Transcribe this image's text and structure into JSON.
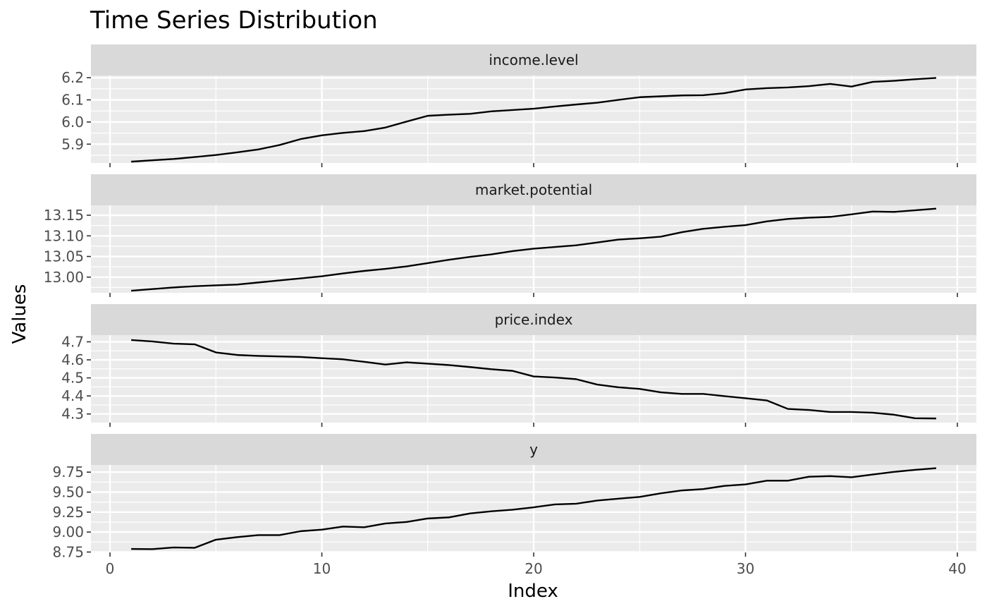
{
  "chart_data": {
    "type": "line",
    "title": "Time Series Distribution",
    "xlabel": "Index",
    "ylabel": "Values",
    "xlim": [
      -0.9,
      40.9
    ],
    "x_ticks": [
      0,
      10,
      20,
      30,
      40
    ],
    "x_tick_labels": [
      "0",
      "10",
      "20",
      "30",
      "40"
    ],
    "grid": true,
    "line_color": "#000000",
    "panel_background": "#ebebeb",
    "strip_background": "#d9d9d9",
    "gridline_color": "#ffffff",
    "x": [
      1,
      2,
      3,
      4,
      5,
      6,
      7,
      8,
      9,
      10,
      11,
      12,
      13,
      14,
      15,
      16,
      17,
      18,
      19,
      20,
      21,
      22,
      23,
      24,
      25,
      26,
      27,
      28,
      29,
      30,
      31,
      32,
      33,
      34,
      35,
      36,
      37,
      38,
      39
    ],
    "panels": [
      {
        "name": "income.level",
        "ylim": [
          5.815,
          6.21
        ],
        "y_ticks": [
          5.9,
          6.0,
          6.1,
          6.2
        ],
        "y_tick_labels": [
          "5.9",
          "6.0",
          "6.1",
          "6.2"
        ],
        "values": [
          5.821,
          5.827,
          5.833,
          5.842,
          5.851,
          5.863,
          5.876,
          5.896,
          5.923,
          5.94,
          5.951,
          5.959,
          5.975,
          6.002,
          6.028,
          6.033,
          6.037,
          6.048,
          6.054,
          6.06,
          6.07,
          6.079,
          6.087,
          6.1,
          6.112,
          6.116,
          6.12,
          6.121,
          6.13,
          6.147,
          6.153,
          6.156,
          6.162,
          6.172,
          6.16,
          6.181,
          6.186,
          6.193,
          6.199
        ]
      },
      {
        "name": "market.potential",
        "ylim": [
          12.962,
          13.174
        ],
        "y_ticks": [
          13.0,
          13.05,
          13.1,
          13.15
        ],
        "y_tick_labels": [
          "13.00",
          "13.05",
          "13.10",
          "13.15"
        ],
        "values": [
          12.967,
          12.971,
          12.975,
          12.978,
          12.98,
          12.982,
          12.987,
          12.992,
          12.997,
          13.002,
          13.009,
          13.015,
          13.02,
          13.026,
          13.034,
          13.042,
          13.049,
          13.055,
          13.063,
          13.069,
          13.073,
          13.077,
          13.084,
          13.091,
          13.094,
          13.098,
          13.109,
          13.117,
          13.122,
          13.126,
          13.135,
          13.141,
          13.144,
          13.146,
          13.152,
          13.159,
          13.158,
          13.162,
          13.166
        ]
      },
      {
        "name": "price.index",
        "ylim": [
          4.252,
          4.737
        ],
        "y_ticks": [
          4.3,
          4.4,
          4.5,
          4.6,
          4.7
        ],
        "y_tick_labels": [
          "4.3",
          "4.4",
          "4.5",
          "4.6",
          "4.7"
        ],
        "values": [
          4.71,
          4.702,
          4.69,
          4.686,
          4.641,
          4.627,
          4.622,
          4.619,
          4.616,
          4.609,
          4.603,
          4.589,
          4.574,
          4.586,
          4.579,
          4.571,
          4.56,
          4.548,
          4.539,
          4.508,
          4.502,
          4.493,
          4.463,
          4.448,
          4.439,
          4.42,
          4.411,
          4.411,
          4.399,
          4.387,
          4.375,
          4.328,
          4.322,
          4.311,
          4.311,
          4.307,
          4.296,
          4.276,
          4.275
        ]
      },
      {
        "name": "y",
        "ylim": [
          8.745,
          9.84
        ],
        "y_ticks": [
          8.75,
          9.0,
          9.25,
          9.5,
          9.75
        ],
        "y_tick_labels": [
          "8.75",
          "9.00",
          "9.25",
          "9.50",
          "9.75"
        ],
        "values": [
          8.789,
          8.786,
          8.807,
          8.803,
          8.905,
          8.936,
          8.962,
          8.962,
          9.011,
          9.03,
          9.069,
          9.06,
          9.108,
          9.126,
          9.17,
          9.184,
          9.233,
          9.26,
          9.28,
          9.31,
          9.346,
          9.355,
          9.395,
          9.418,
          9.44,
          9.485,
          9.521,
          9.538,
          9.578,
          9.597,
          9.643,
          9.643,
          9.693,
          9.7,
          9.686,
          9.72,
          9.753,
          9.779,
          9.8
        ]
      }
    ]
  }
}
